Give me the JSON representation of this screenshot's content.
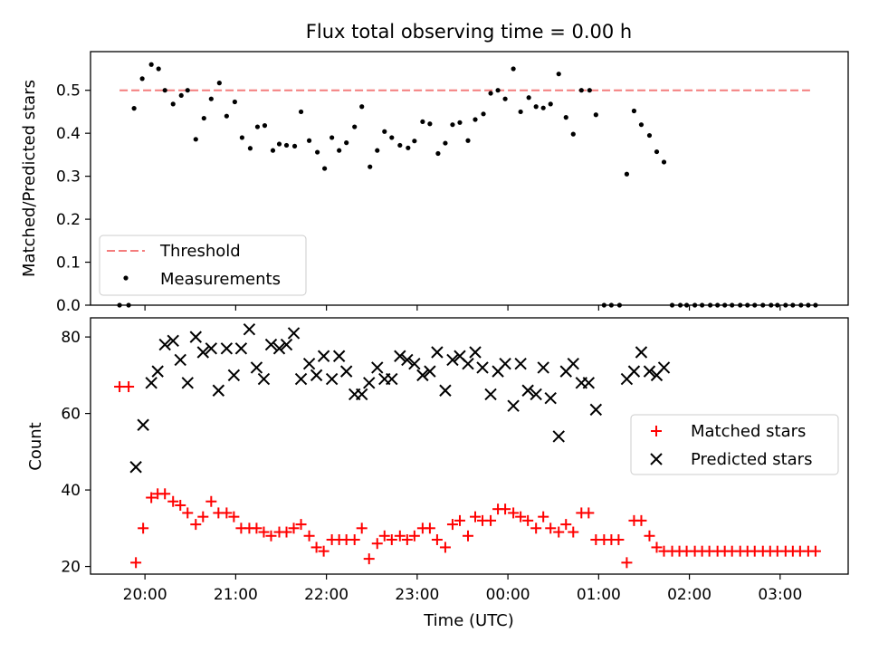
{
  "figure": {
    "title": "Flux total observing time = 0.00 h"
  },
  "chart_data": [
    {
      "type": "scatter",
      "ylabel": "Matched/Predicted stars",
      "xlim": [
        19.4,
        27.75
      ],
      "ylim": [
        0.0,
        0.59
      ],
      "y_ticks": [
        0.0,
        0.1,
        0.2,
        0.3,
        0.4,
        0.5
      ],
      "y_tick_labels": [
        "0.0",
        "0.1",
        "0.2",
        "0.3",
        "0.4",
        "0.5"
      ],
      "grid": false,
      "legend": {
        "position": "lower-left",
        "entries": [
          {
            "label": "Threshold",
            "marker": "dashed-line",
            "color": "#f47d7d"
          },
          {
            "label": "Measurements",
            "marker": "dot",
            "color": "#000000"
          }
        ]
      },
      "threshold": {
        "name": "Threshold",
        "value": 0.5,
        "x_range": [
          19.72,
          27.33
        ],
        "color": "#f47d7d"
      },
      "series": [
        {
          "name": "Measurements",
          "color": "#000000",
          "points": [
            [
              19.72,
              0.0
            ],
            [
              19.82,
              0.0
            ],
            [
              19.88,
              0.458
            ],
            [
              19.97,
              0.527
            ],
            [
              20.07,
              0.56
            ],
            [
              20.15,
              0.55
            ],
            [
              20.22,
              0.5
            ],
            [
              20.31,
              0.468
            ],
            [
              20.4,
              0.488
            ],
            [
              20.47,
              0.5
            ],
            [
              20.56,
              0.386
            ],
            [
              20.65,
              0.435
            ],
            [
              20.73,
              0.48
            ],
            [
              20.82,
              0.517
            ],
            [
              20.9,
              0.44
            ],
            [
              20.99,
              0.473
            ],
            [
              21.07,
              0.39
            ],
            [
              21.16,
              0.365
            ],
            [
              21.24,
              0.415
            ],
            [
              21.32,
              0.418
            ],
            [
              21.41,
              0.36
            ],
            [
              21.48,
              0.375
            ],
            [
              21.56,
              0.372
            ],
            [
              21.65,
              0.37
            ],
            [
              21.72,
              0.45
            ],
            [
              21.81,
              0.383
            ],
            [
              21.9,
              0.356
            ],
            [
              21.98,
              0.318
            ],
            [
              22.06,
              0.39
            ],
            [
              22.14,
              0.36
            ],
            [
              22.22,
              0.378
            ],
            [
              22.31,
              0.415
            ],
            [
              22.39,
              0.462
            ],
            [
              22.48,
              0.322
            ],
            [
              22.56,
              0.36
            ],
            [
              22.64,
              0.404
            ],
            [
              22.72,
              0.39
            ],
            [
              22.81,
              0.372
            ],
            [
              22.9,
              0.366
            ],
            [
              22.97,
              0.382
            ],
            [
              23.06,
              0.427
            ],
            [
              23.14,
              0.422
            ],
            [
              23.23,
              0.353
            ],
            [
              23.31,
              0.377
            ],
            [
              23.39,
              0.42
            ],
            [
              23.47,
              0.425
            ],
            [
              23.56,
              0.383
            ],
            [
              23.64,
              0.432
            ],
            [
              23.73,
              0.445
            ],
            [
              23.81,
              0.493
            ],
            [
              23.89,
              0.5
            ],
            [
              23.97,
              0.48
            ],
            [
              24.06,
              0.55
            ],
            [
              24.14,
              0.45
            ],
            [
              24.23,
              0.483
            ],
            [
              24.31,
              0.462
            ],
            [
              24.39,
              0.459
            ],
            [
              24.47,
              0.468
            ],
            [
              24.56,
              0.538
            ],
            [
              24.64,
              0.437
            ],
            [
              24.72,
              0.398
            ],
            [
              24.81,
              0.5
            ],
            [
              24.9,
              0.5
            ],
            [
              24.97,
              0.443
            ],
            [
              25.06,
              0.0
            ],
            [
              25.14,
              0.0
            ],
            [
              25.23,
              0.0
            ],
            [
              25.31,
              0.305
            ],
            [
              25.39,
              0.452
            ],
            [
              25.47,
              0.42
            ],
            [
              25.56,
              0.395
            ],
            [
              25.64,
              0.357
            ],
            [
              25.72,
              0.333
            ],
            [
              25.81,
              0.0
            ],
            [
              25.9,
              0.0
            ],
            [
              25.97,
              0.0
            ],
            [
              26.06,
              0.0
            ],
            [
              26.14,
              0.0
            ],
            [
              26.23,
              0.0
            ],
            [
              26.31,
              0.0
            ],
            [
              26.39,
              0.0
            ],
            [
              26.47,
              0.0
            ],
            [
              26.56,
              0.0
            ],
            [
              26.64,
              0.0
            ],
            [
              26.72,
              0.0
            ],
            [
              26.81,
              0.0
            ],
            [
              26.9,
              0.0
            ],
            [
              26.97,
              0.0
            ],
            [
              27.06,
              0.0
            ],
            [
              27.14,
              0.0
            ],
            [
              27.23,
              0.0
            ],
            [
              27.31,
              0.0
            ],
            [
              27.39,
              0.0
            ]
          ]
        }
      ]
    },
    {
      "type": "scatter",
      "xlabel": "Time (UTC)",
      "ylabel": "Count",
      "xlim": [
        19.4,
        27.75
      ],
      "ylim": [
        18,
        85
      ],
      "x_ticks": [
        20,
        21,
        22,
        23,
        24,
        25,
        26,
        27
      ],
      "x_tick_labels": [
        "20:00",
        "21:00",
        "22:00",
        "23:00",
        "00:00",
        "01:00",
        "02:00",
        "03:00"
      ],
      "y_ticks": [
        20,
        40,
        60,
        80
      ],
      "y_tick_labels": [
        "20",
        "40",
        "60",
        "80"
      ],
      "grid": false,
      "legend": {
        "position": "center-right",
        "entries": [
          {
            "label": "Matched stars",
            "marker": "plus",
            "color": "#ff0000"
          },
          {
            "label": "Predicted stars",
            "marker": "x",
            "color": "#000000"
          }
        ]
      },
      "series": [
        {
          "name": "Matched stars",
          "marker": "plus",
          "color": "#ff0000",
          "points": [
            [
              19.72,
              67
            ],
            [
              19.82,
              67
            ],
            [
              19.9,
              21
            ],
            [
              19.98,
              30
            ],
            [
              20.07,
              38
            ],
            [
              20.14,
              39
            ],
            [
              20.22,
              39
            ],
            [
              20.31,
              37
            ],
            [
              20.39,
              36
            ],
            [
              20.47,
              34
            ],
            [
              20.56,
              31
            ],
            [
              20.64,
              33
            ],
            [
              20.73,
              37
            ],
            [
              20.81,
              34
            ],
            [
              20.9,
              34
            ],
            [
              20.98,
              33
            ],
            [
              21.06,
              30
            ],
            [
              21.15,
              30
            ],
            [
              21.23,
              30
            ],
            [
              21.31,
              29
            ],
            [
              21.39,
              28
            ],
            [
              21.48,
              29
            ],
            [
              21.56,
              29
            ],
            [
              21.64,
              30
            ],
            [
              21.72,
              31
            ],
            [
              21.81,
              28
            ],
            [
              21.89,
              25
            ],
            [
              21.97,
              24
            ],
            [
              22.06,
              27
            ],
            [
              22.14,
              27
            ],
            [
              22.22,
              27
            ],
            [
              22.31,
              27
            ],
            [
              22.39,
              30
            ],
            [
              22.47,
              22
            ],
            [
              22.56,
              26
            ],
            [
              22.64,
              28
            ],
            [
              22.72,
              27
            ],
            [
              22.81,
              28
            ],
            [
              22.89,
              27
            ],
            [
              22.97,
              28
            ],
            [
              23.06,
              30
            ],
            [
              23.14,
              30
            ],
            [
              23.22,
              27
            ],
            [
              23.31,
              25
            ],
            [
              23.39,
              31
            ],
            [
              23.47,
              32
            ],
            [
              23.56,
              28
            ],
            [
              23.64,
              33
            ],
            [
              23.72,
              32
            ],
            [
              23.81,
              32
            ],
            [
              23.89,
              35
            ],
            [
              23.97,
              35
            ],
            [
              24.06,
              34
            ],
            [
              24.14,
              33
            ],
            [
              24.22,
              32
            ],
            [
              24.31,
              30
            ],
            [
              24.39,
              33
            ],
            [
              24.47,
              30
            ],
            [
              24.56,
              29
            ],
            [
              24.64,
              31
            ],
            [
              24.72,
              29
            ],
            [
              24.81,
              34
            ],
            [
              24.89,
              34
            ],
            [
              24.97,
              27
            ],
            [
              25.06,
              27
            ],
            [
              25.14,
              27
            ],
            [
              25.22,
              27
            ],
            [
              25.31,
              21
            ],
            [
              25.39,
              32
            ],
            [
              25.47,
              32
            ],
            [
              25.56,
              28
            ],
            [
              25.64,
              25
            ],
            [
              25.72,
              24
            ],
            [
              25.81,
              24
            ],
            [
              25.89,
              24
            ],
            [
              25.97,
              24
            ],
            [
              26.06,
              24
            ],
            [
              26.14,
              24
            ],
            [
              26.22,
              24
            ],
            [
              26.31,
              24
            ],
            [
              26.39,
              24
            ],
            [
              26.47,
              24
            ],
            [
              26.56,
              24
            ],
            [
              26.64,
              24
            ],
            [
              26.72,
              24
            ],
            [
              26.81,
              24
            ],
            [
              26.89,
              24
            ],
            [
              26.97,
              24
            ],
            [
              27.06,
              24
            ],
            [
              27.14,
              24
            ],
            [
              27.22,
              24
            ],
            [
              27.31,
              24
            ],
            [
              27.39,
              24
            ]
          ]
        },
        {
          "name": "Predicted stars",
          "marker": "x",
          "color": "#000000",
          "points": [
            [
              19.9,
              46
            ],
            [
              19.98,
              57
            ],
            [
              20.07,
              68
            ],
            [
              20.14,
              71
            ],
            [
              20.22,
              78
            ],
            [
              20.31,
              79
            ],
            [
              20.39,
              74
            ],
            [
              20.47,
              68
            ],
            [
              20.56,
              80
            ],
            [
              20.64,
              76
            ],
            [
              20.73,
              77
            ],
            [
              20.81,
              66
            ],
            [
              20.9,
              77
            ],
            [
              20.98,
              70
            ],
            [
              21.06,
              77
            ],
            [
              21.15,
              82
            ],
            [
              21.23,
              72
            ],
            [
              21.31,
              69
            ],
            [
              21.39,
              78
            ],
            [
              21.48,
              77
            ],
            [
              21.56,
              78
            ],
            [
              21.64,
              81
            ],
            [
              21.72,
              69
            ],
            [
              21.81,
              73
            ],
            [
              21.89,
              70
            ],
            [
              21.97,
              75
            ],
            [
              22.06,
              69
            ],
            [
              22.14,
              75
            ],
            [
              22.22,
              71
            ],
            [
              22.31,
              65
            ],
            [
              22.39,
              65
            ],
            [
              22.47,
              68
            ],
            [
              22.56,
              72
            ],
            [
              22.64,
              69
            ],
            [
              22.72,
              69
            ],
            [
              22.81,
              75
            ],
            [
              22.89,
              74
            ],
            [
              22.97,
              73
            ],
            [
              23.06,
              70
            ],
            [
              23.14,
              71
            ],
            [
              23.22,
              76
            ],
            [
              23.31,
              66
            ],
            [
              23.39,
              74
            ],
            [
              23.47,
              75
            ],
            [
              23.56,
              73
            ],
            [
              23.64,
              76
            ],
            [
              23.72,
              72
            ],
            [
              23.81,
              65
            ],
            [
              23.89,
              71
            ],
            [
              23.97,
              73
            ],
            [
              24.06,
              62
            ],
            [
              24.14,
              73
            ],
            [
              24.22,
              66
            ],
            [
              24.31,
              65
            ],
            [
              24.39,
              72
            ],
            [
              24.47,
              64
            ],
            [
              24.56,
              54
            ],
            [
              24.64,
              71
            ],
            [
              24.72,
              73
            ],
            [
              24.81,
              68
            ],
            [
              24.89,
              68
            ],
            [
              24.97,
              61
            ],
            [
              25.31,
              69
            ],
            [
              25.39,
              71
            ],
            [
              25.47,
              76
            ],
            [
              25.56,
              71
            ],
            [
              25.64,
              70
            ],
            [
              25.72,
              72
            ]
          ]
        }
      ]
    }
  ]
}
